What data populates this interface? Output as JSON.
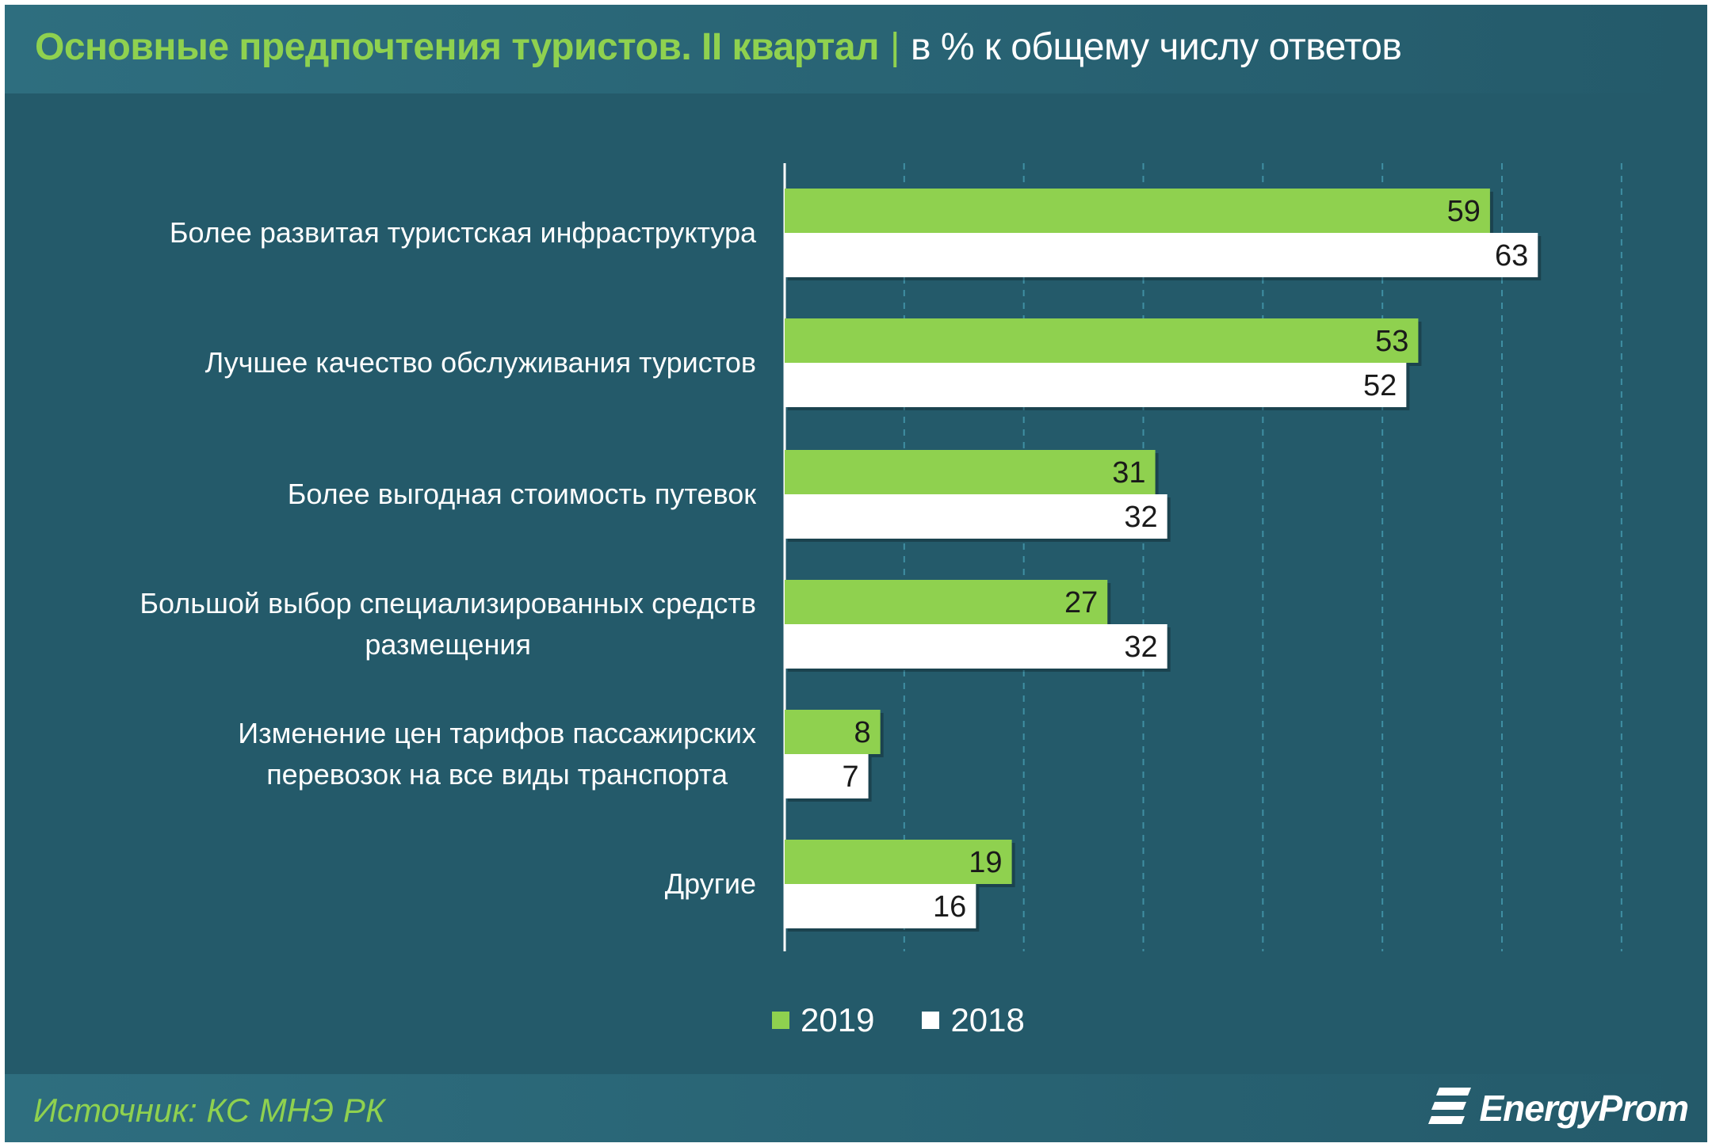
{
  "header": {
    "title_main": "Основные предпочтения туристов. II квартал",
    "title_sep": "|",
    "title_unit": "в % к общему числу ответов"
  },
  "footer": {
    "source": "Источник: КС МНЭ РК",
    "logo_text": "EnergyProm"
  },
  "colors": {
    "background": "#245a6a",
    "series_2019": "#8fd14f",
    "series_2018": "#ffffff",
    "gridline": "#3f8fa3"
  },
  "chart_data": {
    "type": "bar",
    "orientation": "horizontal",
    "title": "Основные предпочтения туристов. II квартал",
    "subtitle": "в % к общему числу ответов",
    "categories": [
      "Более развитая туристская инфраструктура",
      "Лучшее качество обслуживания туристов",
      "Более выгодная стоимость путевок",
      "Большой выбор специализированных средств размещения",
      "Изменение цен тарифов пассажирских перевозок на все виды транспорта",
      "Другие"
    ],
    "category_lines": [
      [
        "Более развитая туристская инфраструктура"
      ],
      [
        "Лучшее качество обслуживания туристов"
      ],
      [
        "Более выгодная стоимость путевок"
      ],
      [
        "Большой выбор специализированных средств",
        "размещения"
      ],
      [
        "Изменение цен тарифов пассажирских",
        "перевозок на все виды транспорта"
      ],
      [
        "Другие"
      ]
    ],
    "series": [
      {
        "name": "2019",
        "color": "#8fd14f",
        "values": [
          59,
          53,
          31,
          27,
          8,
          19
        ]
      },
      {
        "name": "2018",
        "color": "#ffffff",
        "values": [
          63,
          52,
          32,
          32,
          7,
          16
        ]
      }
    ],
    "xlim": [
      0,
      72
    ],
    "grid": true,
    "legend": "bottom-center"
  }
}
